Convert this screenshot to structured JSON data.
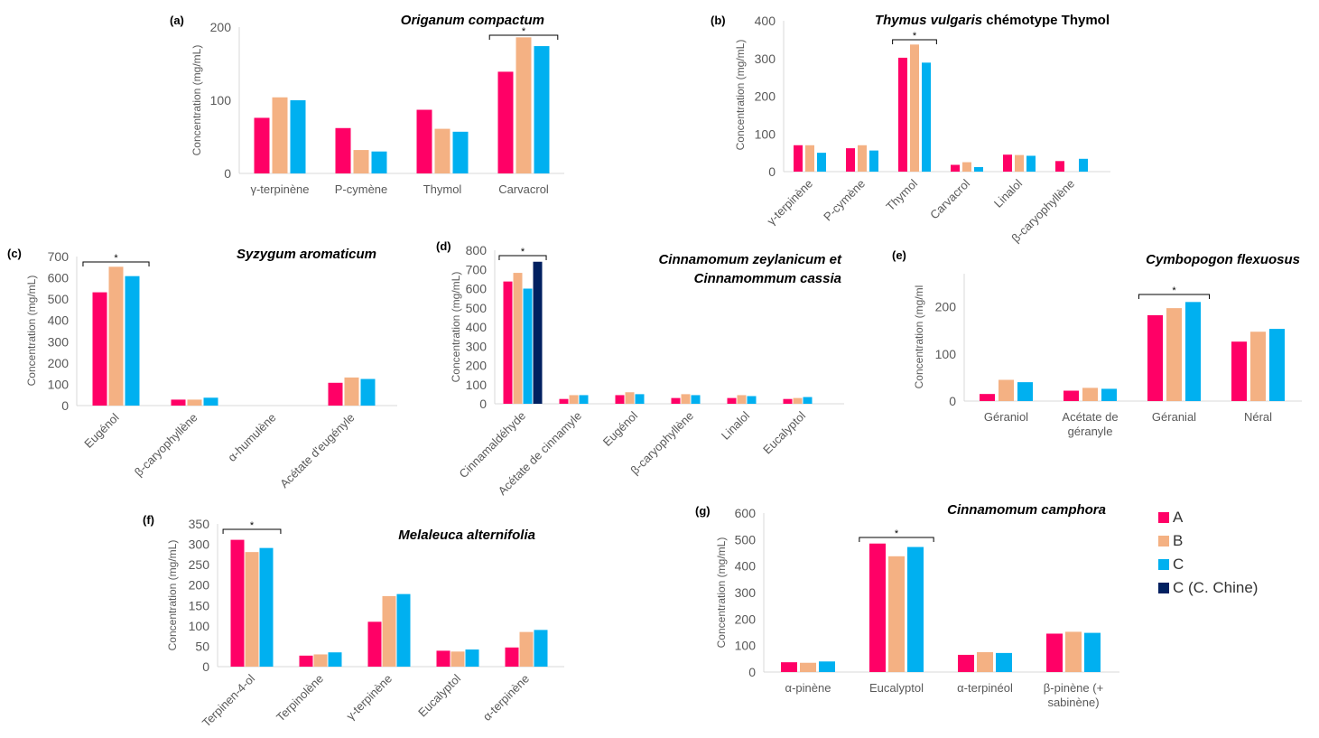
{
  "colors": {
    "A": "#ff0066",
    "B": "#f4b183",
    "C": "#00b0f0",
    "C (C. Chine)": "#002060"
  },
  "legend": [
    {
      "label": "A",
      "color": "#ff0066"
    },
    {
      "label": "B",
      "color": "#f4b183"
    },
    {
      "label": "C",
      "color": "#00b0f0"
    },
    {
      "label": "C (C. Chine)",
      "color": "#002060"
    }
  ],
  "chart_data": [
    {
      "type": "bar",
      "tag": "(a)",
      "title": "Origanum compactum",
      "title_italic": true,
      "ylabel": "Concentration (mg/mL)",
      "ylim": [
        0,
        200
      ],
      "yticks": [
        0,
        100,
        200
      ],
      "categories": [
        "γ-terpinène",
        "P-cymène",
        "Thymol",
        "Carvacrol"
      ],
      "series": [
        {
          "name": "A",
          "values": [
            76,
            62,
            87,
            139
          ]
        },
        {
          "name": "B",
          "values": [
            104,
            32,
            61,
            186
          ]
        },
        {
          "name": "C",
          "values": [
            100,
            30,
            57,
            174
          ]
        }
      ],
      "significance": {
        "from": 3,
        "to": 3,
        "label": "*"
      }
    },
    {
      "type": "bar",
      "tag": "(b)",
      "title": "Thymus vulgaris chémotype Thymol",
      "ylabel": "Concentration (mg/mL)",
      "ylim": [
        0,
        400
      ],
      "yticks": [
        0,
        100,
        200,
        300,
        400
      ],
      "categories": [
        "γ-terpinène",
        "P-cymène",
        "Thymol",
        "Carvacrol",
        "Linalol",
        "β-caryophyllène"
      ],
      "series": [
        {
          "name": "A",
          "values": [
            70,
            62,
            302,
            18,
            45,
            28
          ]
        },
        {
          "name": "B",
          "values": [
            70,
            70,
            337,
            25,
            44,
            0
          ]
        },
        {
          "name": "C",
          "values": [
            50,
            56,
            289,
            12,
            42,
            34
          ]
        }
      ],
      "significance": {
        "from": 2,
        "to": 2,
        "label": "*"
      }
    },
    {
      "type": "bar",
      "tag": "(c)",
      "title": "Syzygum aromaticum",
      "ylabel": "Concentration (mg/mL)",
      "ylim": [
        0,
        700
      ],
      "yticks": [
        0,
        100,
        200,
        300,
        400,
        500,
        600,
        700
      ],
      "categories": [
        "Eugénol",
        "β-caryophyllène",
        "α-humulène",
        "Acétate d'eugényle"
      ],
      "series": [
        {
          "name": "A",
          "values": [
            532,
            28,
            0,
            107
          ]
        },
        {
          "name": "B",
          "values": [
            652,
            28,
            0,
            132
          ]
        },
        {
          "name": "C",
          "values": [
            608,
            37,
            0,
            125
          ]
        }
      ],
      "significance": {
        "from": 0,
        "to": 0,
        "label": "*"
      }
    },
    {
      "type": "bar",
      "tag": "(d)",
      "title_lines": [
        "Cinnamomum zeylanicum et",
        "Cinnamommum cassia"
      ],
      "ylabel": "Concentration (mg/mL)",
      "ylim": [
        0,
        800
      ],
      "yticks": [
        0,
        100,
        200,
        300,
        400,
        500,
        600,
        700,
        800
      ],
      "categories": [
        "Cinnamaldéhyde",
        "Acétate de cinnamyle",
        "Eugénol",
        "β-caryophyllène",
        "Linalol",
        "Eucalyptol"
      ],
      "series": [
        {
          "name": "A",
          "values": [
            637,
            25,
            45,
            30,
            30,
            25
          ]
        },
        {
          "name": "B",
          "values": [
            682,
            45,
            60,
            50,
            45,
            30
          ]
        },
        {
          "name": "C",
          "values": [
            600,
            45,
            50,
            45,
            40,
            35
          ]
        },
        {
          "name": "C (C. Chine)",
          "values": [
            740,
            0,
            0,
            0,
            0,
            0
          ]
        }
      ],
      "significance": {
        "from": 0,
        "to": 0,
        "label": "*"
      }
    },
    {
      "type": "bar",
      "tag": "(e)",
      "title": "Cymbopogon flexuosus",
      "ylabel": "Concentration (mg/ml",
      "ylim": [
        0,
        270
      ],
      "yticks": [
        0,
        100,
        200
      ],
      "categories": [
        "Géraniol",
        "Acétate de\ngéranyle",
        "Géranial",
        "Néral"
      ],
      "series": [
        {
          "name": "A",
          "values": [
            15,
            22,
            182,
            126
          ]
        },
        {
          "name": "B",
          "values": [
            45,
            28,
            197,
            147
          ]
        },
        {
          "name": "C",
          "values": [
            40,
            26,
            210,
            153
          ]
        }
      ],
      "significance": {
        "from": 2,
        "to": 2,
        "label": "*"
      }
    },
    {
      "type": "bar",
      "tag": "(f)",
      "title": "Melaleuca alternifolia",
      "ylabel": "Concentration (mg/mL)",
      "ylim": [
        0,
        350
      ],
      "yticks": [
        0,
        50,
        100,
        150,
        200,
        250,
        300,
        350
      ],
      "categories": [
        "Terpinen-4-ol",
        "Terpinolène",
        "γ-terpinène",
        "Eucalyptol",
        "α-terpinène"
      ],
      "series": [
        {
          "name": "A",
          "values": [
            311,
            27,
            110,
            39,
            47
          ]
        },
        {
          "name": "B",
          "values": [
            281,
            30,
            173,
            37,
            85
          ]
        },
        {
          "name": "C",
          "values": [
            291,
            35,
            178,
            42,
            90
          ]
        }
      ],
      "significance": {
        "from": 0,
        "to": 0,
        "label": "*"
      }
    },
    {
      "type": "bar",
      "tag": "(g)",
      "title": "Cinnamomum camphora",
      "ylabel": "Concentration (mg/mL)",
      "ylim": [
        0,
        600
      ],
      "yticks": [
        0,
        100,
        200,
        300,
        400,
        500,
        600
      ],
      "categories": [
        "α-pinène",
        "Eucalyptol",
        "α-terpinéol",
        "β-pinène (+\nsabinène)"
      ],
      "series": [
        {
          "name": "A",
          "values": [
            37,
            485,
            65,
            145
          ]
        },
        {
          "name": "B",
          "values": [
            35,
            437,
            75,
            152
          ]
        },
        {
          "name": "C",
          "values": [
            40,
            472,
            72,
            148
          ]
        }
      ],
      "significance": {
        "from": 1,
        "to": 1,
        "label": "*"
      }
    }
  ]
}
